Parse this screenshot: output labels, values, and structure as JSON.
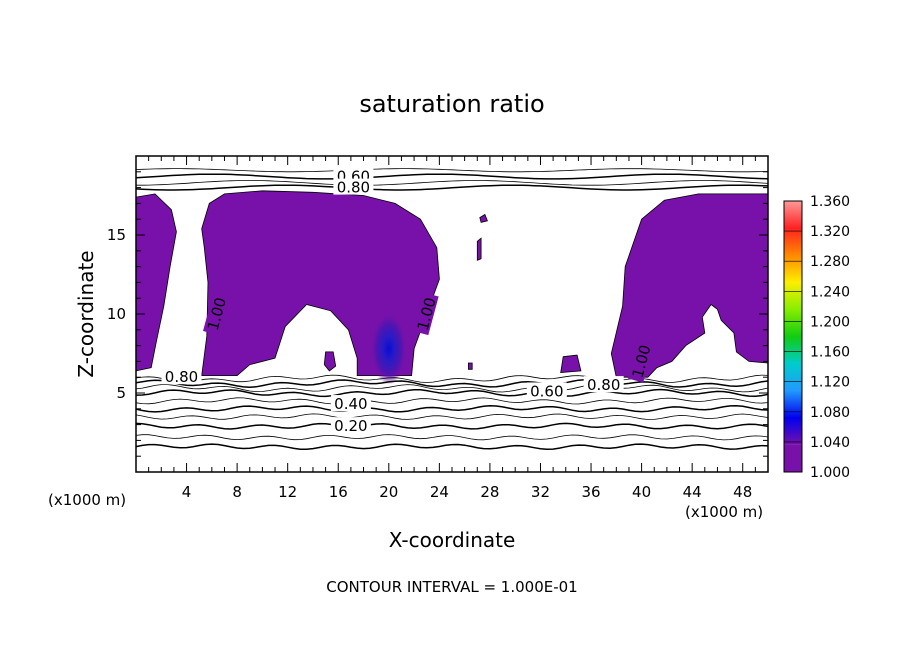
{
  "chart_data": {
    "type": "contour",
    "title": "saturation ratio",
    "xlabel": "X-coordinate",
    "ylabel": "Z-coordinate",
    "x_units": "(x1000 m)",
    "z_units": "(x1000 m)",
    "xlim": [
      0,
      50
    ],
    "ylim": [
      0,
      20
    ],
    "x_ticks": [
      4,
      8,
      12,
      16,
      20,
      24,
      28,
      32,
      36,
      40,
      44,
      48
    ],
    "y_ticks": [
      5,
      10,
      15
    ],
    "footer": "CONTOUR INTERVAL = 1.000E-01",
    "colorbar": {
      "labels": [
        "1.360",
        "1.320",
        "1.280",
        "1.240",
        "1.200",
        "1.160",
        "1.120",
        "1.080",
        "1.040",
        "1.000"
      ],
      "colors": [
        "#ff9999",
        "#ff2222",
        "#ff8800",
        "#ffee00",
        "#88ee00",
        "#11cc11",
        "#00cccc",
        "#2299ff",
        "#0000ee",
        "#7711aa"
      ]
    },
    "contour_labels": [
      {
        "text": "0.60",
        "x": 17.2,
        "z": 18.7
      },
      {
        "text": "0.80",
        "x": 17.2,
        "z": 18.0
      },
      {
        "text": "1.00",
        "x": 6.4,
        "z": 10.0
      },
      {
        "text": "1.00",
        "x": 23.0,
        "z": 10.0
      },
      {
        "text": "1.00",
        "x": 40.0,
        "z": 7.0
      },
      {
        "text": "0.80",
        "x": 3.6,
        "z": 6.0
      },
      {
        "text": "0.60",
        "x": 32.5,
        "z": 5.1
      },
      {
        "text": "0.80",
        "x": 37.0,
        "z": 5.5
      },
      {
        "text": "0.40",
        "x": 17.0,
        "z": 4.3
      },
      {
        "text": "0.20",
        "x": 17.0,
        "z": 2.9
      }
    ],
    "isolines": [
      {
        "z": 1.6,
        "amp": 0.05
      },
      {
        "z": 2.2,
        "amp": 0.05
      },
      {
        "z": 2.9,
        "amp": 0.06
      },
      {
        "z": 3.5,
        "amp": 0.06
      },
      {
        "z": 4.0,
        "amp": 0.08
      },
      {
        "z": 4.5,
        "amp": 0.08
      },
      {
        "z": 5.0,
        "amp": 0.1
      },
      {
        "z": 5.3,
        "amp": 0.12
      },
      {
        "z": 5.6,
        "amp": 0.12
      },
      {
        "z": 5.9,
        "amp": 0.12
      },
      {
        "z": 18.0,
        "amp": 0.15
      },
      {
        "z": 18.3,
        "amp": 0.15
      },
      {
        "z": 18.7,
        "amp": 0.15
      },
      {
        "z": 19.1,
        "amp": 0.1
      }
    ],
    "supersat_regions": [
      {
        "points": [
          [
            0,
            17.4
          ],
          [
            1.5,
            17.6
          ],
          [
            2.8,
            16.6
          ],
          [
            3.2,
            15.2
          ],
          [
            2.7,
            13.0
          ],
          [
            2.2,
            10.5
          ],
          [
            1.6,
            8.2
          ],
          [
            1.2,
            6.6
          ],
          [
            0,
            6.4
          ]
        ]
      },
      {
        "points": [
          [
            5.2,
            15.4
          ],
          [
            5.8,
            17.0
          ],
          [
            7.0,
            17.6
          ],
          [
            10.0,
            17.8
          ],
          [
            14.0,
            17.7
          ],
          [
            18.0,
            17.5
          ],
          [
            20.5,
            17.0
          ],
          [
            22.5,
            16.0
          ],
          [
            23.8,
            14.2
          ],
          [
            24.0,
            12.2
          ],
          [
            23.0,
            10.0
          ],
          [
            22.0,
            7.8
          ],
          [
            21.8,
            6.1
          ],
          [
            17.5,
            6.1
          ],
          [
            17.5,
            7.2
          ],
          [
            16.8,
            9.0
          ],
          [
            15.4,
            10.2
          ],
          [
            13.5,
            10.6
          ],
          [
            11.8,
            9.2
          ],
          [
            11.0,
            7.2
          ],
          [
            9.0,
            6.8
          ],
          [
            8.0,
            6.1
          ],
          [
            5.2,
            6.1
          ],
          [
            5.6,
            8.6
          ],
          [
            5.7,
            12.0
          ],
          [
            5.4,
            14.2
          ]
        ]
      },
      {
        "points": [
          [
            15.0,
            7.6
          ],
          [
            15.6,
            7.6
          ],
          [
            15.8,
            6.7
          ],
          [
            15.3,
            6.4
          ],
          [
            14.9,
            6.8
          ]
        ]
      },
      {
        "points": [
          [
            27.2,
            16.1
          ],
          [
            27.6,
            16.3
          ],
          [
            27.8,
            15.9
          ],
          [
            27.3,
            15.8
          ]
        ]
      },
      {
        "points": [
          [
            27.0,
            14.6
          ],
          [
            27.3,
            14.8
          ],
          [
            27.3,
            13.5
          ],
          [
            27.0,
            13.4
          ]
        ]
      },
      {
        "points": [
          [
            33.8,
            7.3
          ],
          [
            34.9,
            7.4
          ],
          [
            35.2,
            6.4
          ],
          [
            33.6,
            6.3
          ]
        ]
      },
      {
        "points": [
          [
            26.3,
            6.9
          ],
          [
            26.6,
            6.9
          ],
          [
            26.6,
            6.5
          ],
          [
            26.3,
            6.5
          ]
        ]
      },
      {
        "points": [
          [
            40.0,
            16.0
          ],
          [
            41.8,
            17.2
          ],
          [
            44.5,
            17.6
          ],
          [
            50.0,
            17.6
          ],
          [
            50.0,
            6.9
          ],
          [
            48.5,
            7.0
          ],
          [
            47.5,
            7.6
          ],
          [
            47.3,
            8.8
          ],
          [
            46.3,
            9.6
          ],
          [
            46.0,
            10.3
          ],
          [
            45.5,
            10.6
          ],
          [
            44.8,
            9.8
          ],
          [
            45.0,
            8.8
          ],
          [
            43.5,
            8.0
          ],
          [
            42.4,
            7.0
          ],
          [
            41.2,
            6.6
          ],
          [
            40.5,
            6.0
          ],
          [
            38.0,
            6.0
          ],
          [
            37.6,
            7.5
          ],
          [
            38.5,
            10.5
          ],
          [
            38.7,
            13.0
          ]
        ]
      }
    ],
    "peak": {
      "x": 20.0,
      "z": 6.4,
      "value": 1.06
    }
  }
}
